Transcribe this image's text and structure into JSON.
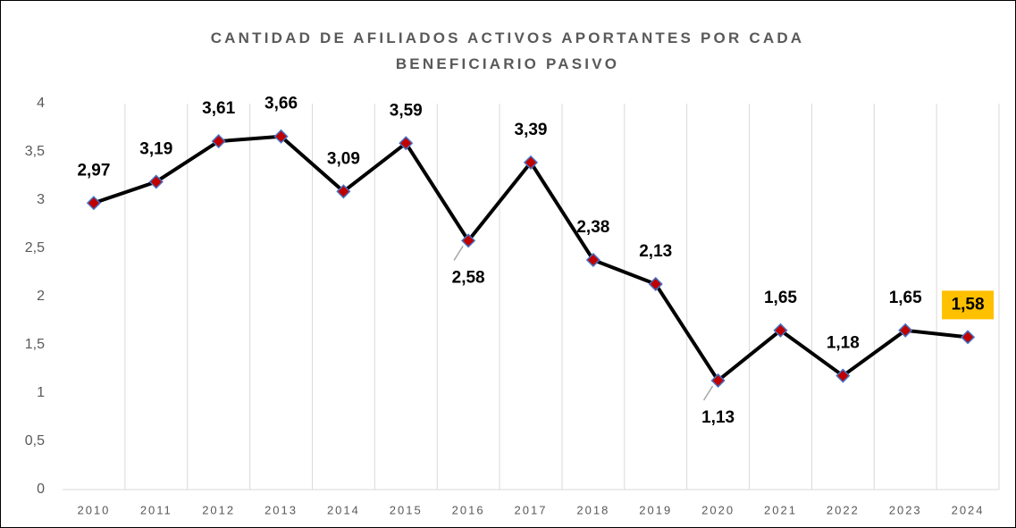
{
  "chart_data": {
    "type": "line",
    "title": "CANTIDAD DE AFILIADOS ACTIVOS APORTANTES POR CADA BENEFICIARIO PASIVO",
    "categories": [
      "2010",
      "2011",
      "2012",
      "2013",
      "2014",
      "2015",
      "2016",
      "2017",
      "2018",
      "2019",
      "2020",
      "2021",
      "2022",
      "2023",
      "2024"
    ],
    "values": [
      2.97,
      3.19,
      3.61,
      3.66,
      3.09,
      3.59,
      2.58,
      3.39,
      2.38,
      2.13,
      1.13,
      1.65,
      1.18,
      1.65,
      1.58
    ],
    "value_labels": [
      "2,97",
      "3,19",
      "3,61",
      "3,66",
      "3,09",
      "3,59",
      "2,58",
      "3,39",
      "2,38",
      "2,13",
      "1,13",
      "1,65",
      "1,18",
      "1,65",
      "1,58"
    ],
    "ylim": [
      0,
      4
    ],
    "yticks": [
      0,
      {
        "value": 0.5,
        "label": "0,5"
      },
      1,
      {
        "value": 1.5,
        "label": "1,5"
      },
      2,
      {
        "value": 2.5,
        "label": "2,5"
      },
      3,
      {
        "value": 3.5,
        "label": "3,5"
      },
      4
    ],
    "color": "#000000",
    "marker_color": "#c00000",
    "marker_edge_color": "#4472c4",
    "grid": true,
    "highlight": {
      "category": "2024",
      "color": "#ffc000"
    }
  }
}
